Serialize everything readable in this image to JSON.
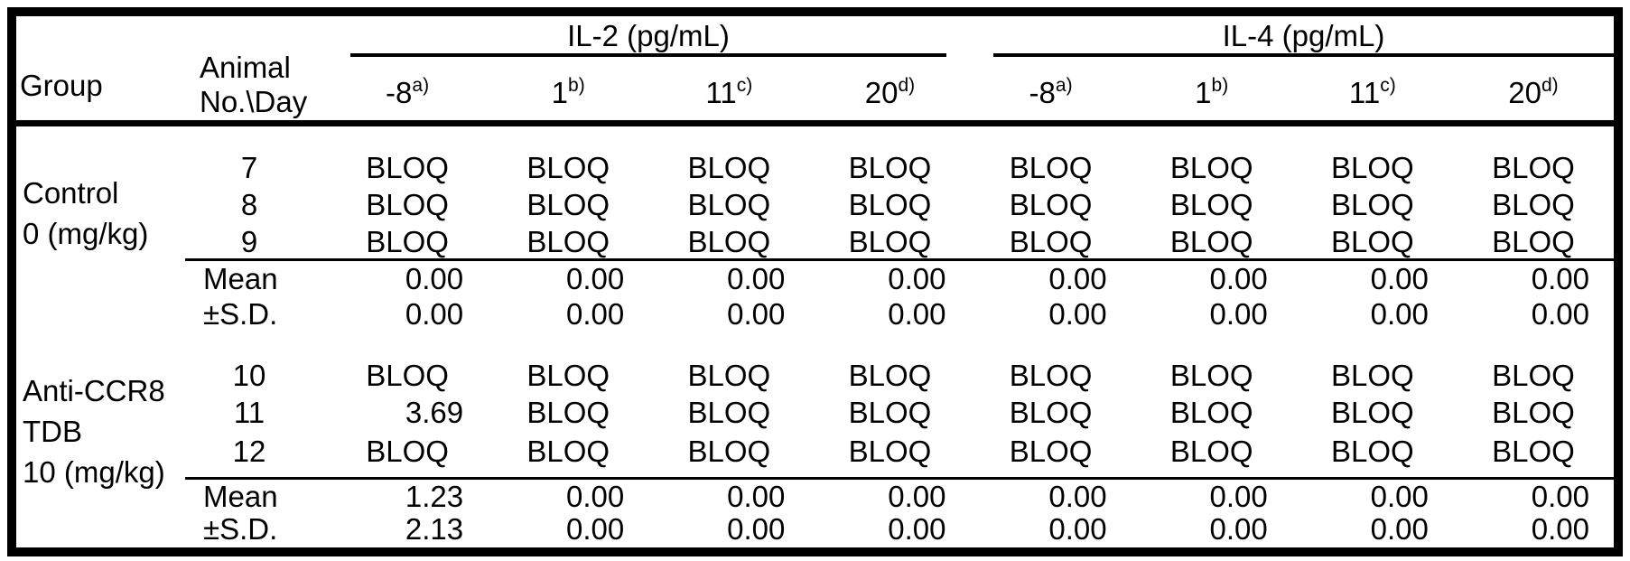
{
  "table": {
    "analyte_headers": [
      {
        "label": "IL-2 (pg/mL)"
      },
      {
        "label": "IL-4 (pg/mL)"
      }
    ],
    "corner": {
      "group_label": "Group",
      "animal_no_day_line1": "Animal",
      "animal_no_day_line2": "No.\\Day"
    },
    "day_columns": [
      {
        "day": "-8",
        "note": "a)"
      },
      {
        "day": "1",
        "note": "b)"
      },
      {
        "day": "11",
        "note": "c)"
      },
      {
        "day": "20",
        "note": "d)"
      },
      {
        "day": "-8",
        "note": "a)"
      },
      {
        "day": "1",
        "note": "b)"
      },
      {
        "day": "11",
        "note": "c)"
      },
      {
        "day": "20",
        "note": "d)"
      }
    ],
    "groups": [
      {
        "label_lines": [
          "Control",
          "0 (mg/kg)"
        ],
        "animals": [
          {
            "id": "7",
            "values": [
              "BLOQ",
              "BLOQ",
              "BLOQ",
              "BLOQ",
              "BLOQ",
              "BLOQ",
              "BLOQ",
              "BLOQ"
            ]
          },
          {
            "id": "8",
            "values": [
              "BLOQ",
              "BLOQ",
              "BLOQ",
              "BLOQ",
              "BLOQ",
              "BLOQ",
              "BLOQ",
              "BLOQ"
            ]
          },
          {
            "id": "9",
            "values": [
              "BLOQ",
              "BLOQ",
              "BLOQ",
              "BLOQ",
              "BLOQ",
              "BLOQ",
              "BLOQ",
              "BLOQ"
            ]
          }
        ],
        "stats": [
          {
            "label": "Mean",
            "values": [
              "0.00",
              "0.00",
              "0.00",
              "0.00",
              "0.00",
              "0.00",
              "0.00",
              "0.00"
            ]
          },
          {
            "label": "±S.D.",
            "values": [
              "0.00",
              "0.00",
              "0.00",
              "0.00",
              "0.00",
              "0.00",
              "0.00",
              "0.00"
            ]
          }
        ]
      },
      {
        "label_lines": [
          "Anti-CCR8",
          "TDB",
          "10 (mg/kg)"
        ],
        "animals": [
          {
            "id": "10",
            "values": [
              "BLOQ",
              "BLOQ",
              "BLOQ",
              "BLOQ",
              "BLOQ",
              "BLOQ",
              "BLOQ",
              "BLOQ"
            ]
          },
          {
            "id": "11",
            "values": [
              "3.69",
              "BLOQ",
              "BLOQ",
              "BLOQ",
              "BLOQ",
              "BLOQ",
              "BLOQ",
              "BLOQ"
            ]
          },
          {
            "id": "12",
            "values": [
              "BLOQ",
              "BLOQ",
              "BLOQ",
              "BLOQ",
              "BLOQ",
              "BLOQ",
              "BLOQ",
              "BLOQ"
            ]
          }
        ],
        "stats": [
          {
            "label": "Mean",
            "values": [
              "1.23",
              "0.00",
              "0.00",
              "0.00",
              "0.00",
              "0.00",
              "0.00",
              "0.00"
            ]
          },
          {
            "label": "±S.D.",
            "values": [
              "2.13",
              "0.00",
              "0.00",
              "0.00",
              "0.00",
              "0.00",
              "0.00",
              "0.00"
            ]
          }
        ]
      }
    ]
  }
}
